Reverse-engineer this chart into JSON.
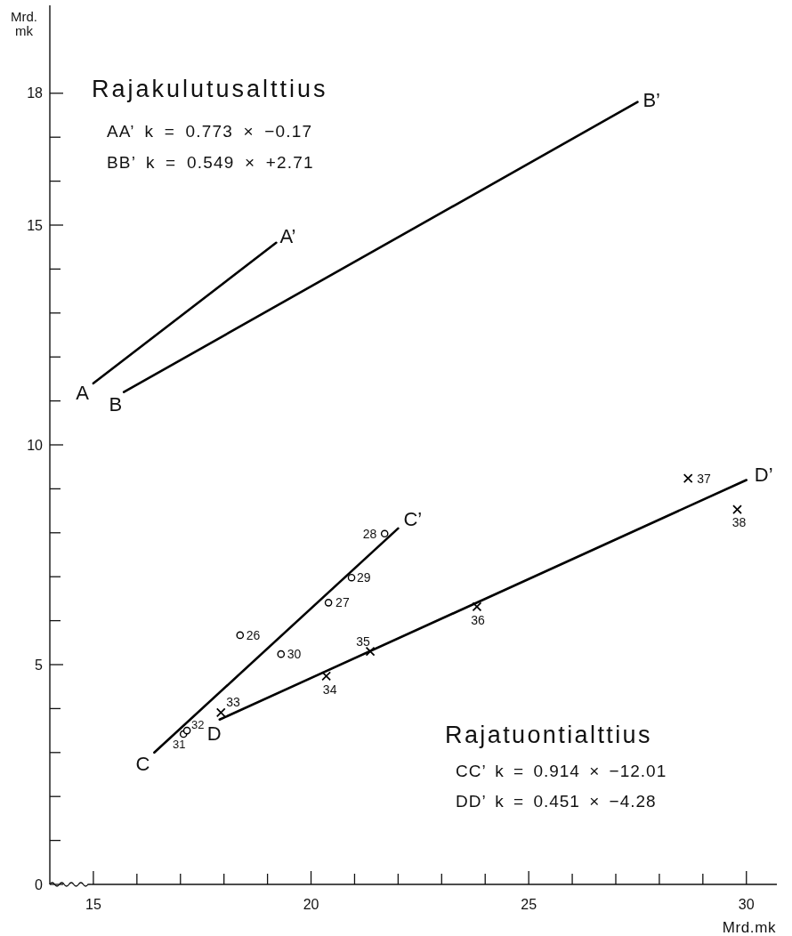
{
  "chart_data": {
    "type": "line",
    "xlabel": "Mrd.mk",
    "ylabel": "Mrd. mk",
    "xlim": [
      14,
      30.7
    ],
    "ylim": [
      0,
      20
    ],
    "xticks": [
      15,
      {
        "value": 16,
        "label": null
      },
      {
        "value": 17,
        "label": null
      },
      {
        "value": 18,
        "label": null
      },
      {
        "value": 19,
        "label": null
      },
      20,
      {
        "value": 21,
        "label": null
      },
      {
        "value": 22,
        "label": null
      },
      {
        "value": 23,
        "label": null
      },
      {
        "value": 24,
        "label": null
      },
      25,
      {
        "value": 26,
        "label": null
      },
      {
        "value": 27,
        "label": null
      },
      {
        "value": 28,
        "label": null
      },
      {
        "value": 29,
        "label": null
      },
      30
    ],
    "yticks": [
      0,
      {
        "value": 1,
        "label": null
      },
      {
        "value": 2,
        "label": null
      },
      {
        "value": 3,
        "label": null
      },
      {
        "value": 4,
        "label": null
      },
      5,
      {
        "value": 6,
        "label": null
      },
      {
        "value": 7,
        "label": null
      },
      {
        "value": 8,
        "label": null
      },
      {
        "value": 9,
        "label": null
      },
      10,
      {
        "value": 11,
        "label": null
      },
      {
        "value": 12,
        "label": null
      },
      {
        "value": 13,
        "label": null
      },
      {
        "value": 14,
        "label": null
      },
      15,
      {
        "value": 16,
        "label": null
      },
      {
        "value": 17,
        "label": null
      },
      18
    ],
    "series": [
      {
        "type": "line",
        "color": "#000000",
        "x": [
          15.0,
          19.2
        ],
        "values": [
          11.4,
          14.6
        ]
      },
      {
        "type": "line",
        "color": "#000000",
        "x": [
          15.7,
          27.5
        ],
        "values": [
          11.2,
          17.8
        ]
      },
      {
        "type": "line",
        "color": "#000000",
        "x": [
          16.4,
          22.0
        ],
        "values": [
          3.0,
          8.1
        ]
      },
      {
        "type": "line",
        "color": "#000000",
        "x": [
          17.9,
          30.0
        ],
        "values": [
          3.75,
          9.2
        ]
      },
      {
        "type": "scatter",
        "marker": "circle",
        "color": "#000000",
        "x": [
          18.37,
          20.4,
          21.69,
          20.93,
          19.31,
          17.07,
          17.15
        ],
        "values": [
          5.67,
          6.41,
          7.98,
          6.98,
          5.24,
          3.42,
          3.5
        ]
      },
      {
        "type": "scatter",
        "marker": "cross",
        "color": "#000000",
        "x": [
          17.93,
          20.35,
          21.36,
          23.81,
          28.66,
          29.79
        ],
        "values": [
          3.91,
          4.74,
          5.3,
          6.32,
          9.24,
          8.53
        ]
      }
    ],
    "annotations": [
      "Rajakulutusalttius",
      "AA’ k = 0.773 × −0.17",
      "BB’ k = 0.549 × +2.71",
      "Rajatuontialttius",
      "CC’ k = 0.914 × −12.01",
      "DD’ k = 0.451 × −4.28",
      {
        "text": "A",
        "x": 15.0,
        "y": 11.4
      },
      {
        "text": "A’",
        "x": 19.2,
        "y": 14.6
      },
      {
        "text": "B",
        "x": 15.7,
        "y": 11.2
      },
      {
        "text": "B’",
        "x": 27.5,
        "y": 17.8
      },
      {
        "text": "C",
        "x": 16.4,
        "y": 3.0
      },
      {
        "text": "C’",
        "x": 22.0,
        "y": 8.1
      },
      {
        "text": "D",
        "x": 17.9,
        "y": 3.75
      },
      {
        "text": "D’",
        "x": 30.0,
        "y": 9.2
      },
      {
        "text": "26",
        "x": 18.37,
        "y": 5.67
      },
      {
        "text": "27",
        "x": 20.4,
        "y": 6.41
      },
      {
        "text": "28",
        "x": 21.69,
        "y": 7.98
      },
      {
        "text": "29",
        "x": 20.93,
        "y": 6.98
      },
      {
        "text": "30",
        "x": 19.31,
        "y": 5.24
      },
      {
        "text": "31",
        "x": 17.07,
        "y": 3.42
      },
      {
        "text": "32",
        "x": 17.15,
        "y": 3.5
      },
      {
        "text": "33",
        "x": 17.93,
        "y": 3.91
      },
      {
        "text": "34",
        "x": 20.35,
        "y": 4.74
      },
      {
        "text": "35",
        "x": 21.36,
        "y": 5.3
      },
      {
        "text": "36",
        "x": 23.81,
        "y": 6.32
      },
      {
        "text": "37",
        "x": 28.66,
        "y": 9.24
      },
      {
        "text": "38",
        "x": 29.79,
        "y": 8.53
      }
    ]
  }
}
